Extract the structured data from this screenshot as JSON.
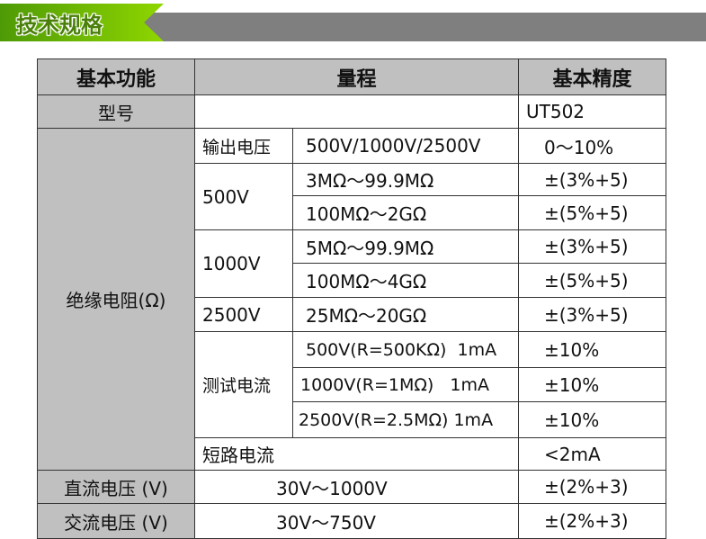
{
  "banner": {
    "title": "技术规格"
  },
  "headers": [
    "基本功能",
    "量程",
    "基本精度"
  ],
  "model": {
    "label": "型号",
    "value": "UT502"
  },
  "insulation": {
    "label": "绝缘电阻(Ω)",
    "output_voltage": {
      "label": "输出电压",
      "range": "500V/1000V/2500V",
      "accuracy": "0～10%"
    },
    "groups": [
      {
        "label": "500V",
        "rows": [
          {
            "range": "3MΩ～99.9MΩ",
            "accuracy": "±(3%+5)"
          },
          {
            "range": "100MΩ～2GΩ",
            "accuracy": "±(5%+5)"
          }
        ]
      },
      {
        "label": "1000V",
        "rows": [
          {
            "range": "5MΩ～99.9MΩ",
            "accuracy": "±(3%+5)"
          },
          {
            "range": "100MΩ～4GΩ",
            "accuracy": "±(5%+5)"
          }
        ]
      },
      {
        "label": "2500V",
        "rows": [
          {
            "range": "25MΩ～20GΩ",
            "accuracy": "±(3%+5)"
          }
        ]
      }
    ],
    "test_current": {
      "label": "测试电流",
      "rows": [
        {
          "range": "500V(R=500KΩ)  1mA",
          "accuracy": "±10%"
        },
        {
          "range": "1000V(R=1MΩ)   1mA",
          "accuracy": "±10%"
        },
        {
          "range": "2500V(R=2.5MΩ) 1mA",
          "accuracy": "±10%"
        }
      ]
    },
    "short_circuit": {
      "label": "短路电流",
      "accuracy": "<2mA"
    }
  },
  "dc_voltage": {
    "label": "直流电压 (V)",
    "range": "30V～1000V",
    "accuracy": "±(2%+3)"
  },
  "ac_voltage": {
    "label": "交流电压 (V)",
    "range": "30V～750V",
    "accuracy": "±(2%+3)"
  }
}
